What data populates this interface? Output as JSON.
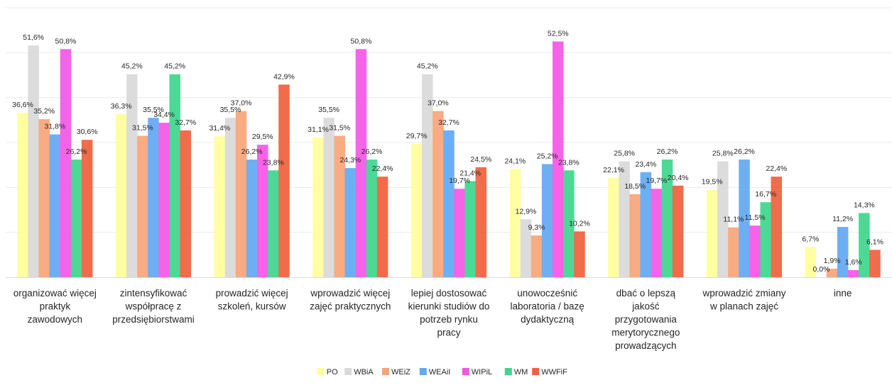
{
  "chart_data": {
    "type": "bar",
    "title": "",
    "xlabel": "",
    "ylabel": "",
    "ylim": [
      0,
      60
    ],
    "grid": true,
    "legend_position": "bottom",
    "categories": [
      "organizować więcej praktyk zawodowych",
      "zintensyfikować współpracę z przedsiębiorstwami",
      "prowadzić więcej szkoleń, kursów",
      "wprowadzić więcej zajęć praktycznych",
      "lepiej dostosować kierunki studiów do potrzeb rynku pracy",
      "unowocześnić laboratoria / bazę dydaktyczną",
      "dbać o lepszą jakość przygotowania merytorycznego prowadzących",
      "wprowadzić zmiany w planach zajęć",
      "inne"
    ],
    "category_lines": [
      [
        "organizować więcej",
        "praktyk",
        "zawodowych"
      ],
      [
        "zintensyfikować",
        "współpracę z",
        "przedsiębiorstwami"
      ],
      [
        "prowadzić więcej",
        "szkoleń, kursów"
      ],
      [
        "wprowadzić więcej",
        "zajęć praktycznych"
      ],
      [
        "lepiej dostosować",
        "kierunki studiów do",
        "potrzeb rynku",
        "pracy"
      ],
      [
        "unowocześnić",
        "laboratoria / bazę",
        "dydaktyczną"
      ],
      [
        "dbać o lepszą",
        "jakość",
        "przygotowania",
        "merytorycznego",
        "prowadzących"
      ],
      [
        "wprowadzić zmiany",
        "w planach zajęć"
      ],
      [
        "inne"
      ]
    ],
    "series": [
      {
        "name": "PO",
        "color": "#ffff99",
        "values": [
          36.6,
          36.3,
          31.4,
          31.1,
          29.7,
          24.1,
          22.1,
          19.5,
          6.7
        ]
      },
      {
        "name": "WBiA",
        "color": "#d9d9d9",
        "values": [
          51.6,
          45.2,
          35.5,
          35.5,
          45.2,
          12.9,
          25.8,
          25.8,
          0.0
        ]
      },
      {
        "name": "WEiZ",
        "color": "#f8a477",
        "values": [
          35.2,
          31.5,
          37.0,
          31.5,
          37.0,
          9.3,
          18.5,
          11.1,
          1.9
        ]
      },
      {
        "name": "WEAiI",
        "color": "#62a8f3",
        "values": [
          31.8,
          35.5,
          26.2,
          24.3,
          32.7,
          25.2,
          23.4,
          26.2,
          11.2
        ]
      },
      {
        "name": "WIPiL",
        "color": "#f556e6",
        "values": [
          50.8,
          34.4,
          29.5,
          50.8,
          19.7,
          52.5,
          19.7,
          11.5,
          1.6
        ]
      },
      {
        "name": "WM",
        "color": "#3fd58d",
        "values": [
          26.2,
          45.2,
          23.8,
          26.2,
          21.4,
          23.8,
          26.2,
          16.7,
          14.3
        ]
      },
      {
        "name": "WWFiF",
        "color": "#f0603c",
        "values": [
          30.6,
          32.7,
          42.9,
          22.4,
          24.5,
          10.2,
          20.4,
          22.4,
          6.1
        ]
      }
    ],
    "value_format": "one decimal, comma separator, percent sign"
  }
}
